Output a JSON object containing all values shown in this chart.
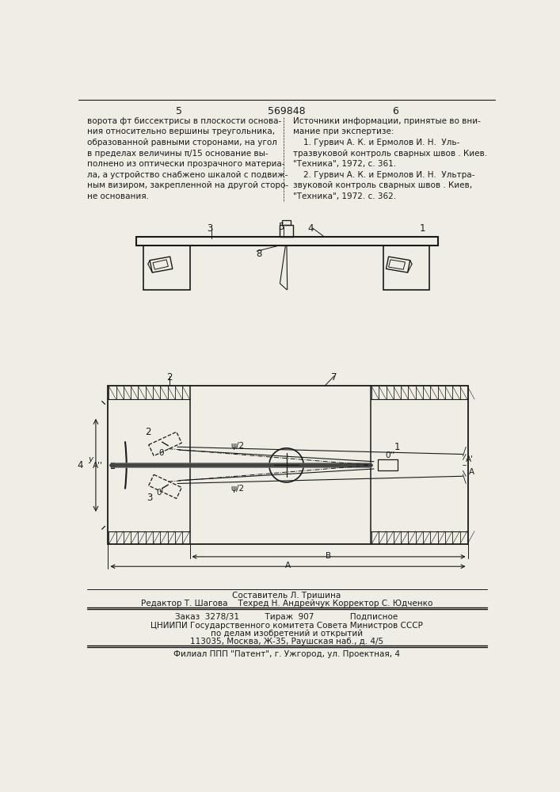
{
  "bg_color": "#f0ede4",
  "page_number_left": "5",
  "page_number_center": "569848",
  "page_number_right": "6",
  "text_left": "ворота фт биссектрисы в плоскости основа-\nния относительно вершины треугольника,\nобразованной равными сторонами, на угол\nв пределах величины π/15 основание вы-\nполнено из оптически прозрачного материа-\nла, а устройство снабжено шкалой с подвиж-\nным визиром, закрепленной на другой сторо-\nне основания.",
  "text_right": "Источники информации, принятые во вни-\nмание при экспертизе:\n    1. Гурвич А. К. и Ермолов И. Н.  Уль-\nтразвуковой контроль сварных швов . Киев.\n\"Техника\", 1972, с. 361.\n    2. Гурвич А. К. и Ермолов И. Н.  Ультра-\nзвуковой контроль сварных швов . Киев,\n\"Техника\", 1972. с. 362.",
  "footer_line1": "Составитель Л. Тришина",
  "footer_line2": "Редактор Т. Шагова    Техред Н. Андрейчук Корректор С. Юдченко",
  "footer_line3": "Заказ  3278/31          Тираж  907              Подписное",
  "footer_line4": "ЦНИИПИ Государственного комитета Совета Министров СССР",
  "footer_line5": "по делам изобретений и открытий",
  "footer_line6": "113035, Москва, Ж-35, Раушская наб., д. 4/5",
  "footer_line7": "Филиал ППП \"Патент\", г. Ужгород, ул. Проектная, 4"
}
